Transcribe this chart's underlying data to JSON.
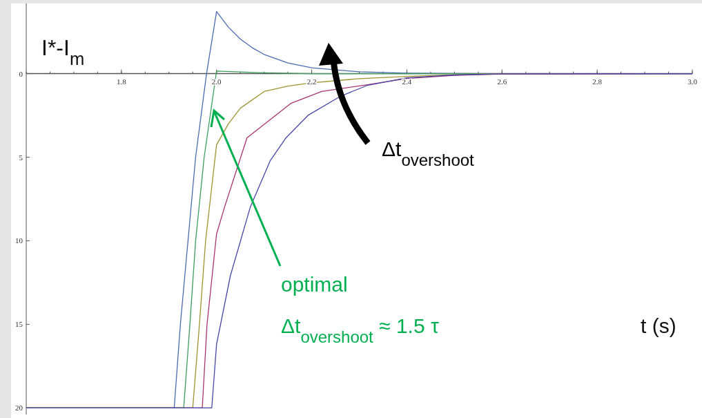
{
  "chart_data": {
    "type": "line",
    "xlabel": "t (s)",
    "ylabel": "I*-I$_{m}$",
    "xlim": [
      1.6,
      3.0
    ],
    "ylim": [
      20.4,
      -4.2
    ],
    "xticks": [
      1.8,
      {
        "value": 2,
        "label": "2.0"
      },
      2.2,
      2.4,
      2.6,
      2.8,
      {
        "value": 3,
        "label": "3.0"
      }
    ],
    "yticks": [
      0,
      5,
      10,
      15,
      20
    ],
    "grid": false,
    "marker": "none",
    "line_style": "solid",
    "series": [
      {
        "color": "#4a6bb0",
        "x": [
          1.6,
          1.911,
          1.924,
          1.94,
          1.956,
          1.979,
          2.0,
          2.025,
          2.05,
          2.075,
          2.1,
          2.15,
          2.2,
          2.3,
          2.4,
          2.5,
          2.6,
          3.0
        ],
        "values": [
          20,
          20,
          15,
          10,
          5,
          0,
          -3.72,
          -2.78,
          -2.07,
          -1.55,
          -1.15,
          -0.64,
          -0.35,
          -0.11,
          -0.03,
          -0.01,
          0,
          0
        ]
      },
      {
        "color": "#3c9e5a",
        "x": [
          1.6,
          1.931,
          1.944,
          1.956,
          1.974,
          2.0,
          2.1,
          2.2,
          3.0
        ],
        "values": [
          20,
          20,
          15,
          10,
          5,
          -0.15,
          -0.05,
          0,
          0
        ]
      },
      {
        "color": "#a0922f",
        "x": [
          1.6,
          1.95,
          1.964,
          1.977,
          2.0,
          2.025,
          2.05,
          2.1,
          2.15,
          2.2,
          2.3,
          2.4,
          2.5,
          2.6,
          3.0
        ],
        "values": [
          20,
          20,
          15,
          10,
          4.26,
          3.0,
          2.07,
          1.07,
          0.75,
          0.55,
          0.3,
          0.17,
          0.06,
          0,
          0
        ]
      },
      {
        "color": "#a8336f",
        "x": [
          1.6,
          1.97,
          1.98,
          2.0,
          2.017,
          2.064,
          2.156,
          2.221,
          2.317,
          2.4,
          2.5,
          2.6,
          3.0
        ],
        "values": [
          20,
          20,
          15,
          9.6,
          7.97,
          3.84,
          1.78,
          1.07,
          0.66,
          0.29,
          0.1,
          0.02,
          0
        ]
      },
      {
        "color": "#4646a8",
        "x": [
          1.6,
          1.99,
          2.0,
          2.029,
          2.071,
          2.113,
          2.146,
          2.193,
          2.26,
          2.317,
          2.4,
          2.5,
          2.6,
          3.0
        ],
        "values": [
          20,
          20,
          16.2,
          12.1,
          7.98,
          5.2,
          3.84,
          2.48,
          1.36,
          0.7,
          0.25,
          0.08,
          0.01,
          0
        ]
      }
    ],
    "annotations": [
      "Δt$_{overshoot}$",
      "optimal",
      "Δt$_{overshoot}$ ≈ 1.5 τ"
    ]
  }
}
